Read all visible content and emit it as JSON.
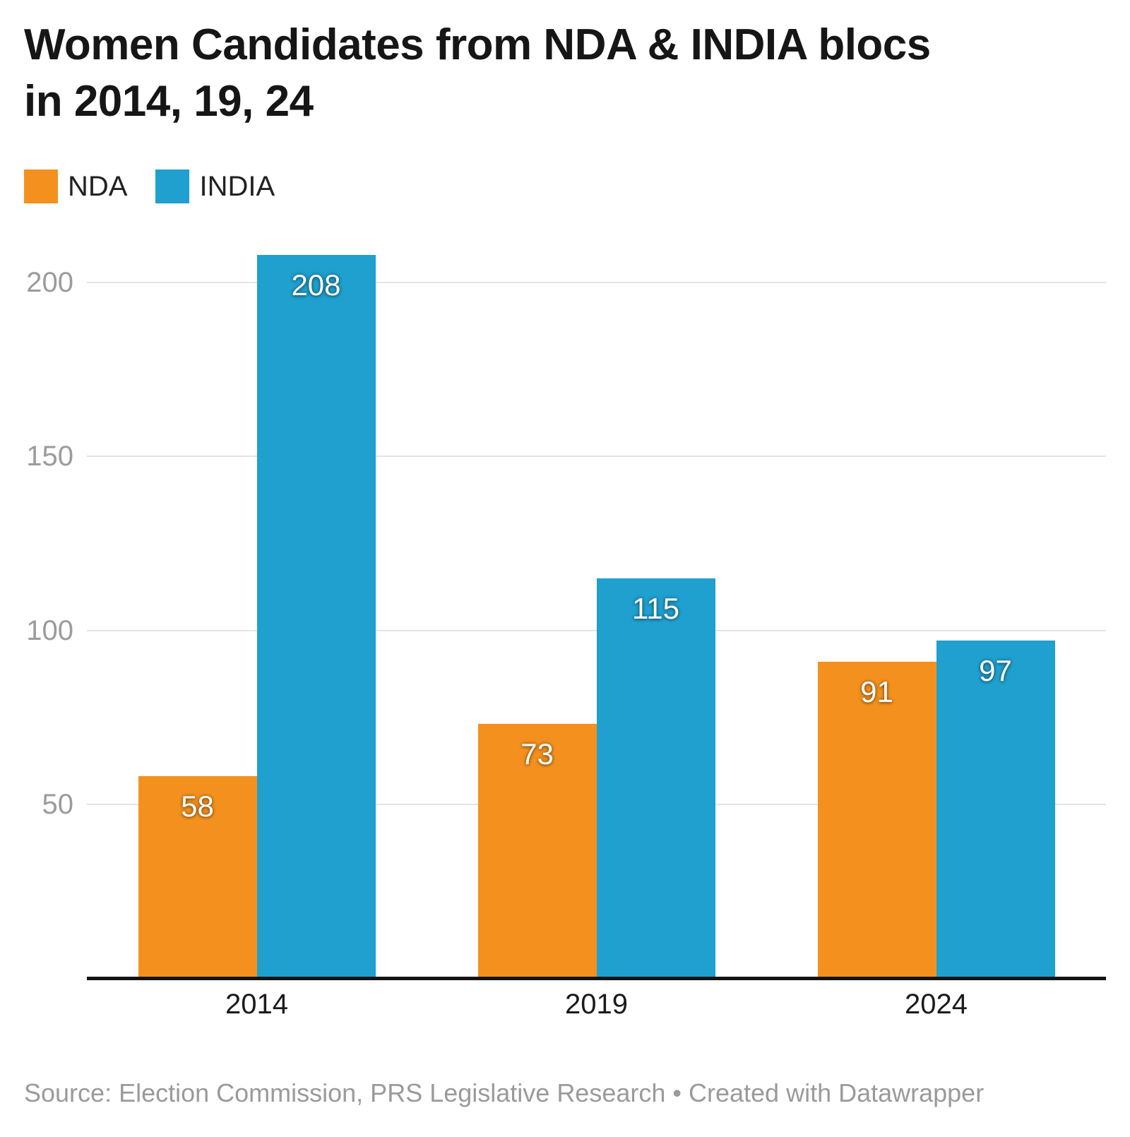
{
  "header": {
    "title_line1": "Women Candidates from NDA & INDIA blocs",
    "title_line2": "in 2014, 19, 24"
  },
  "legend": {
    "items": [
      {
        "label": "NDA",
        "color": "#F4911E"
      },
      {
        "label": "INDIA",
        "color": "#1FA0CE"
      }
    ]
  },
  "chart_data": {
    "type": "bar",
    "title": "Women Candidates from NDA & INDIA blocs in 2014, 19, 24",
    "categories": [
      "2014",
      "2019",
      "2024"
    ],
    "series": [
      {
        "name": "NDA",
        "color": "#F4911E",
        "values": [
          58,
          73,
          91
        ]
      },
      {
        "name": "INDIA",
        "color": "#1FA0CE",
        "values": [
          208,
          115,
          97
        ]
      }
    ],
    "value_labels": [
      [
        "58",
        "73",
        "91"
      ],
      [
        "208",
        "115",
        "97"
      ]
    ],
    "xlabel": "",
    "ylabel": "",
    "ylim": [
      0,
      220
    ],
    "yticks": [
      50,
      100,
      150,
      200
    ],
    "grid": "horizontal",
    "legend_position": "top-left",
    "value_label_color": "#ffffff",
    "gridline_color": "#e3e3e3",
    "axis_line_color": "#141414",
    "tick_label_color": "#9b9b9b",
    "category_label_color": "#1b1b1b"
  },
  "footer": {
    "source": "Source: Election Commission, PRS Legislative Research • Created with Datawrapper"
  }
}
